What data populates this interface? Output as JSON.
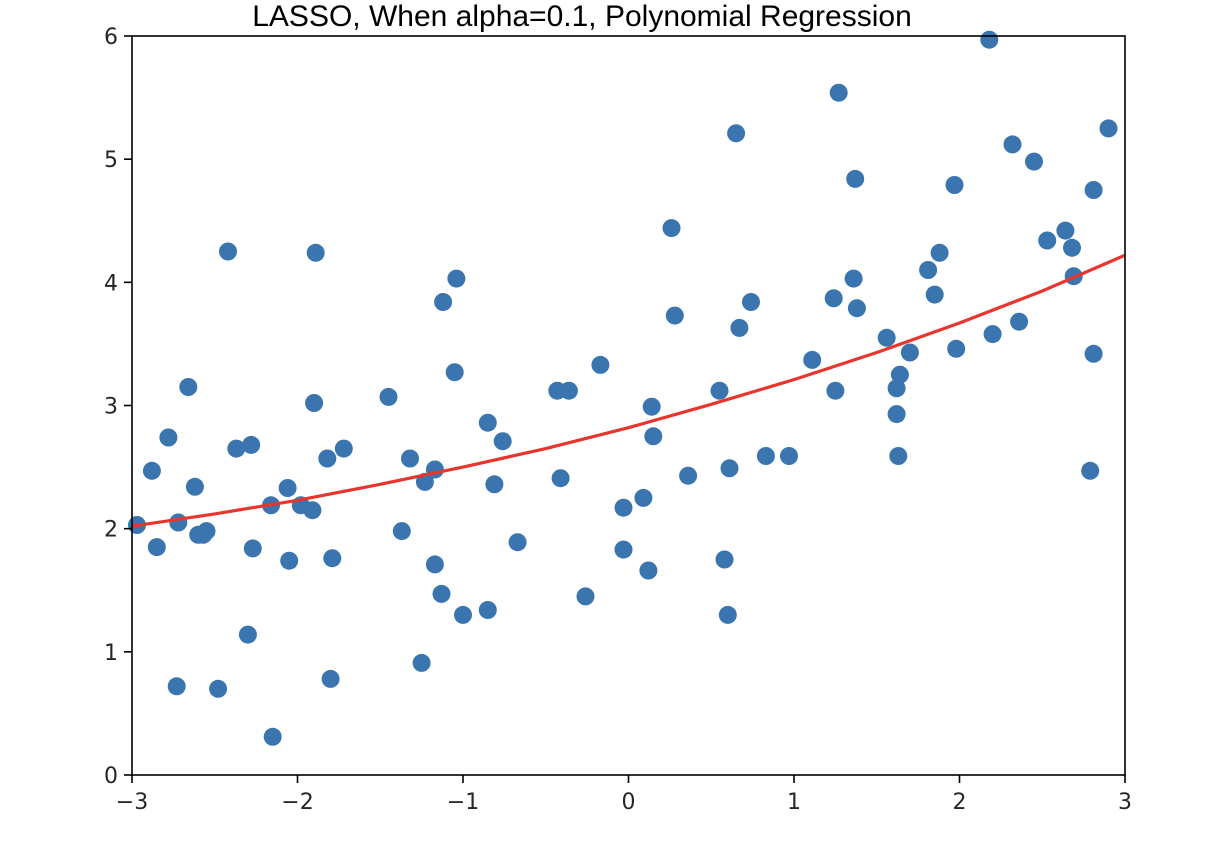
{
  "chart_data": {
    "type": "scatter",
    "title": "LASSO, When alpha=0.1, Polynomial Regression",
    "xlabel": "",
    "ylabel": "",
    "xlim": [
      -3,
      3
    ],
    "ylim": [
      0,
      6
    ],
    "x_ticks": [
      -3,
      -2,
      -1,
      0,
      1,
      2,
      3
    ],
    "x_tick_labels": [
      "−3",
      "−2",
      "−1",
      "0",
      "1",
      "2",
      "3"
    ],
    "y_ticks": [
      0,
      1,
      2,
      3,
      4,
      5,
      6
    ],
    "y_tick_labels": [
      "0",
      "1",
      "2",
      "3",
      "4",
      "5",
      "6"
    ],
    "grid": false,
    "colors": {
      "points": "#3b75af",
      "fit_line": "#e8352d",
      "axes": "#000000"
    },
    "series": [
      {
        "kind": "scatter",
        "points": [
          [
            -2.97,
            2.03
          ],
          [
            -2.88,
            2.47
          ],
          [
            -2.85,
            1.85
          ],
          [
            -2.78,
            2.74
          ],
          [
            -2.73,
            0.72
          ],
          [
            -2.72,
            2.05
          ],
          [
            -2.66,
            3.15
          ],
          [
            -2.62,
            2.34
          ],
          [
            -2.6,
            1.95
          ],
          [
            -2.57,
            1.95
          ],
          [
            -2.55,
            1.98
          ],
          [
            -2.48,
            0.7
          ],
          [
            -2.42,
            4.25
          ],
          [
            -2.37,
            2.65
          ],
          [
            -2.3,
            1.14
          ],
          [
            -2.28,
            2.68
          ],
          [
            -2.27,
            1.84
          ],
          [
            -2.16,
            2.19
          ],
          [
            -2.15,
            0.31
          ],
          [
            -2.06,
            2.33
          ],
          [
            -2.05,
            1.74
          ],
          [
            -1.98,
            2.19
          ],
          [
            -1.91,
            2.15
          ],
          [
            -1.9,
            3.02
          ],
          [
            -1.89,
            4.24
          ],
          [
            -1.82,
            2.57
          ],
          [
            -1.8,
            0.78
          ],
          [
            -1.79,
            1.76
          ],
          [
            -1.72,
            2.65
          ],
          [
            -1.45,
            3.07
          ],
          [
            -1.37,
            1.98
          ],
          [
            -1.32,
            2.57
          ],
          [
            -1.25,
            0.91
          ],
          [
            -1.23,
            2.38
          ],
          [
            -1.17,
            2.48
          ],
          [
            -1.17,
            1.71
          ],
          [
            -1.13,
            1.47
          ],
          [
            -1.12,
            3.84
          ],
          [
            -1.05,
            3.27
          ],
          [
            -1.04,
            4.03
          ],
          [
            -1.0,
            1.3
          ],
          [
            -0.85,
            2.86
          ],
          [
            -0.85,
            1.34
          ],
          [
            -0.81,
            2.36
          ],
          [
            -0.76,
            2.71
          ],
          [
            -0.67,
            1.89
          ],
          [
            -0.43,
            3.12
          ],
          [
            -0.41,
            2.41
          ],
          [
            -0.36,
            3.12
          ],
          [
            -0.26,
            1.45
          ],
          [
            -0.17,
            3.33
          ],
          [
            -0.03,
            2.17
          ],
          [
            -0.03,
            1.83
          ],
          [
            0.09,
            2.25
          ],
          [
            0.12,
            1.66
          ],
          [
            0.14,
            2.99
          ],
          [
            0.15,
            2.75
          ],
          [
            0.26,
            4.44
          ],
          [
            0.28,
            3.73
          ],
          [
            0.36,
            2.43
          ],
          [
            0.55,
            3.12
          ],
          [
            0.58,
            1.75
          ],
          [
            0.6,
            1.3
          ],
          [
            0.61,
            2.49
          ],
          [
            0.65,
            5.21
          ],
          [
            0.67,
            3.63
          ],
          [
            0.74,
            3.84
          ],
          [
            0.83,
            2.59
          ],
          [
            0.97,
            2.59
          ],
          [
            1.11,
            3.37
          ],
          [
            1.24,
            3.87
          ],
          [
            1.25,
            3.12
          ],
          [
            1.27,
            5.54
          ],
          [
            1.36,
            4.03
          ],
          [
            1.37,
            4.84
          ],
          [
            1.38,
            3.79
          ],
          [
            1.56,
            3.55
          ],
          [
            1.62,
            3.14
          ],
          [
            1.62,
            2.93
          ],
          [
            1.63,
            2.59
          ],
          [
            1.64,
            3.25
          ],
          [
            1.7,
            3.43
          ],
          [
            1.81,
            4.1
          ],
          [
            1.85,
            3.9
          ],
          [
            1.88,
            4.24
          ],
          [
            1.97,
            4.79
          ],
          [
            1.98,
            3.46
          ],
          [
            2.18,
            5.97
          ],
          [
            2.2,
            3.58
          ],
          [
            2.32,
            5.12
          ],
          [
            2.36,
            3.68
          ],
          [
            2.45,
            4.98
          ],
          [
            2.53,
            4.34
          ],
          [
            2.64,
            4.42
          ],
          [
            2.68,
            4.28
          ],
          [
            2.69,
            4.05
          ],
          [
            2.79,
            2.47
          ],
          [
            2.81,
            3.42
          ],
          [
            2.81,
            4.75
          ],
          [
            2.9,
            5.25
          ]
        ]
      },
      {
        "kind": "line",
        "x": [
          -3,
          -2.5,
          -2,
          -1.5,
          -1,
          -0.5,
          0,
          0.5,
          1,
          1.5,
          2,
          2.5,
          3
        ],
        "y": [
          2.02,
          2.12,
          2.23,
          2.36,
          2.5,
          2.65,
          2.82,
          3.01,
          3.21,
          3.43,
          3.67,
          3.93,
          4.22
        ]
      }
    ]
  }
}
